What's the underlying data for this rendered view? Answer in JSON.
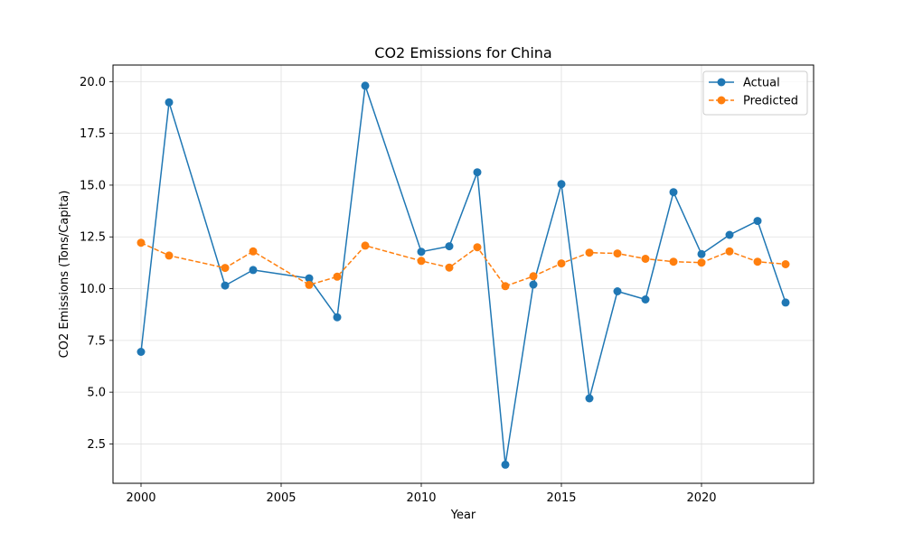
{
  "chart_data": {
    "type": "line",
    "title": "CO2 Emissions for China",
    "xlabel": "Year",
    "ylabel": "CO2 Emissions (Tons/Capita)",
    "xlim": [
      1999,
      2024
    ],
    "ylim": [
      0.6,
      20.8
    ],
    "xticks": [
      2000,
      2005,
      2010,
      2015,
      2020
    ],
    "yticks": [
      2.5,
      5.0,
      7.5,
      10.0,
      12.5,
      15.0,
      17.5,
      20.0
    ],
    "grid": true,
    "legend_position": "top-right",
    "x": [
      2000,
      2001,
      2003,
      2004,
      2006,
      2007,
      2008,
      2010,
      2011,
      2012,
      2013,
      2014,
      2015,
      2016,
      2017,
      2018,
      2019,
      2020,
      2021,
      2022,
      2023
    ],
    "series": [
      {
        "name": "Actual",
        "color": "#1f77b4",
        "linestyle": "solid",
        "marker": "circle",
        "values": [
          6.95,
          19.0,
          10.15,
          10.9,
          10.5,
          8.62,
          19.8,
          11.78,
          12.05,
          15.62,
          1.5,
          10.2,
          15.05,
          4.7,
          9.87,
          9.48,
          14.66,
          11.67,
          12.6,
          13.27,
          9.33
        ]
      },
      {
        "name": "Predicted",
        "color": "#ff7f0e",
        "linestyle": "dashed",
        "marker": "circle",
        "values": [
          12.22,
          11.6,
          11.0,
          11.8,
          10.18,
          10.58,
          12.08,
          11.34,
          11.02,
          12.0,
          10.12,
          10.6,
          11.22,
          11.74,
          11.7,
          11.44,
          11.3,
          11.26,
          11.8,
          11.3,
          11.18
        ]
      }
    ]
  }
}
